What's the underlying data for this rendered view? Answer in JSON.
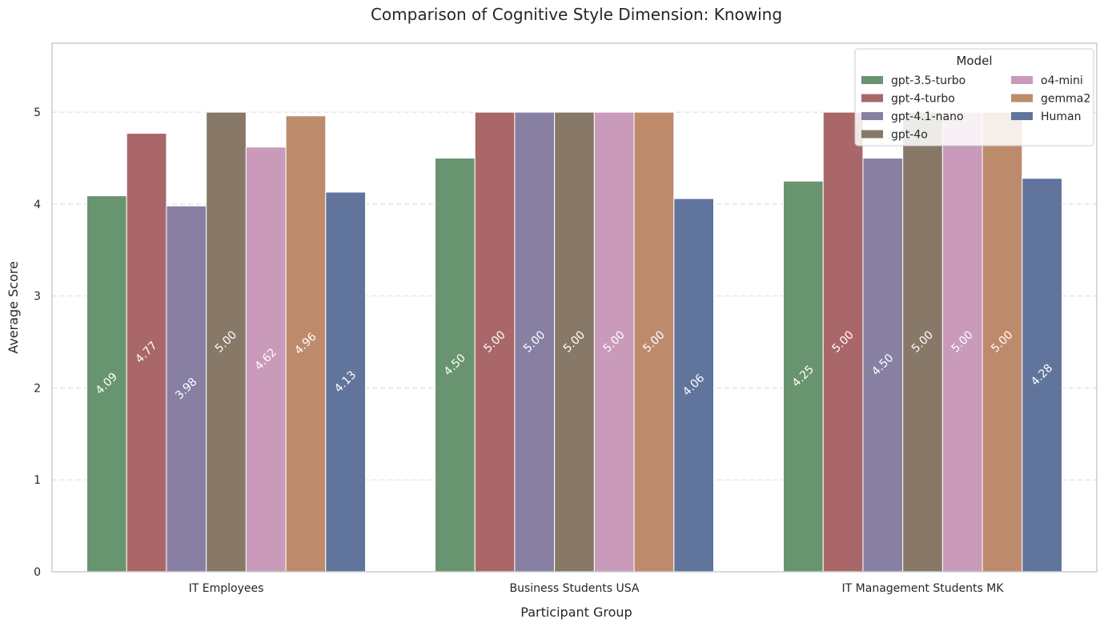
{
  "chart_data": {
    "type": "bar",
    "title": "Comparison of Cognitive Style Dimension: Knowing",
    "xlabel": "Participant Group",
    "ylabel": "Average Score",
    "categories": [
      "IT Employees",
      "Business Students USA",
      "IT Management Students MK"
    ],
    "ylim": [
      0,
      5.75
    ],
    "yticks": [
      "0",
      "1",
      "2",
      "3",
      "4",
      "5"
    ],
    "grid": "horizontal dashed",
    "legend": {
      "title": "Model",
      "placement": "top-right",
      "columns": 2
    },
    "series": [
      {
        "name": "gpt-3.5-turbo",
        "color": "#68956f",
        "values": [
          4.09,
          4.5,
          4.25
        ],
        "labels": [
          "4.09",
          "4.50",
          "4.25"
        ]
      },
      {
        "name": "gpt-4-turbo",
        "color": "#aa6769",
        "values": [
          4.77,
          5.0,
          5.0
        ],
        "labels": [
          "4.77",
          "5.00",
          "5.00"
        ]
      },
      {
        "name": "gpt-4.1-nano",
        "color": "#8780a3",
        "values": [
          3.98,
          5.0,
          4.5
        ],
        "labels": [
          "3.98",
          "5.00",
          "4.50"
        ]
      },
      {
        "name": "gpt-4o",
        "color": "#877868",
        "values": [
          5.0,
          5.0,
          5.0
        ],
        "labels": [
          "5.00",
          "5.00",
          "5.00"
        ]
      },
      {
        "name": "o4-mini",
        "color": "#c99aba",
        "values": [
          4.62,
          5.0,
          5.0
        ],
        "labels": [
          "4.62",
          "5.00",
          "5.00"
        ]
      },
      {
        "name": "gemma2",
        "color": "#bd8b6c",
        "values": [
          4.96,
          5.0,
          5.0
        ],
        "labels": [
          "4.96",
          "5.00",
          "5.00"
        ]
      },
      {
        "name": "Human",
        "color": "#61749c",
        "values": [
          4.13,
          4.06,
          4.28
        ],
        "labels": [
          "4.13",
          "4.06",
          "4.28"
        ]
      }
    ]
  }
}
